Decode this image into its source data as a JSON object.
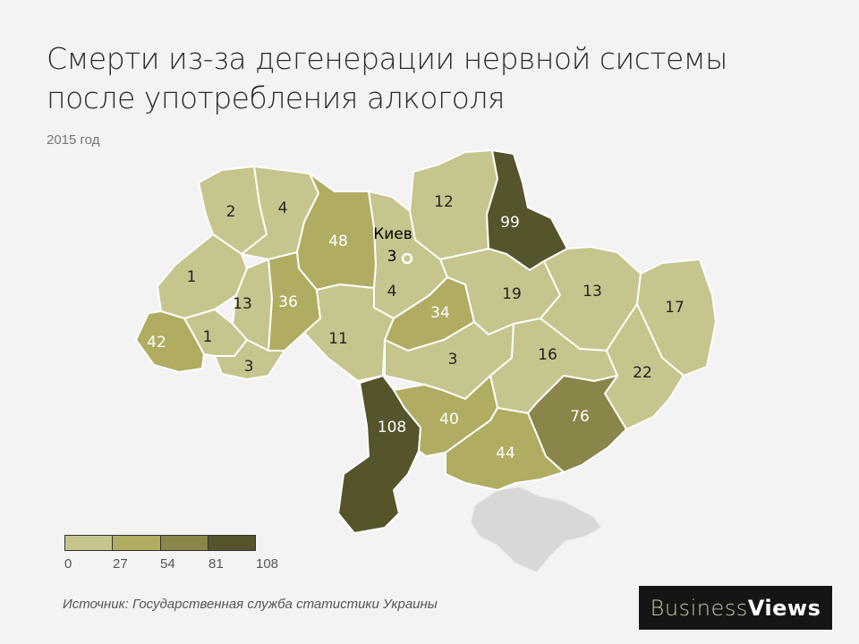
{
  "title": "Смерти из-за дегенерации нервной системы после употребления алкоголя",
  "subtitle": "2015 год",
  "capital": {
    "label": "Киев",
    "value": 3
  },
  "regions": [
    {
      "id": "volyn",
      "value": 2
    },
    {
      "id": "rivne",
      "value": 4
    },
    {
      "id": "zhytomyr",
      "value": 48
    },
    {
      "id": "kyiv-oblast",
      "value": 4
    },
    {
      "id": "chernihiv",
      "value": 12
    },
    {
      "id": "sumy",
      "value": 99
    },
    {
      "id": "lviv",
      "value": 1
    },
    {
      "id": "ternopil",
      "value": 13
    },
    {
      "id": "khmelnytskyi",
      "value": 36
    },
    {
      "id": "vinnytsia",
      "value": 11
    },
    {
      "id": "cherkasy",
      "value": 34
    },
    {
      "id": "poltava",
      "value": 19
    },
    {
      "id": "kharkiv",
      "value": 13
    },
    {
      "id": "luhansk",
      "value": 17
    },
    {
      "id": "zakarpattia",
      "value": 42
    },
    {
      "id": "ivano-frankivsk",
      "value": 1
    },
    {
      "id": "chernivtsi",
      "value": 3
    },
    {
      "id": "kirovohrad",
      "value": 3
    },
    {
      "id": "dnipropetrovsk",
      "value": 16
    },
    {
      "id": "donetsk",
      "value": 22
    },
    {
      "id": "odesa",
      "value": 108
    },
    {
      "id": "mykolaiv",
      "value": 40
    },
    {
      "id": "zaporizhzhia",
      "value": 76
    },
    {
      "id": "kherson",
      "value": 44
    }
  ],
  "legend": {
    "colors": [
      "#c6c58d",
      "#b0ad62",
      "#8a8548",
      "#55542b"
    ],
    "ticks": [
      "0",
      "27",
      "54",
      "81",
      "108"
    ]
  },
  "colors": {
    "light_text": "#222222",
    "dark_text": "#ffffff",
    "crimea": "#d8d8d8"
  },
  "source": "Источник: Государственная служба статистики Украины",
  "logo": {
    "part1": "Business",
    "part2": "Views"
  }
}
